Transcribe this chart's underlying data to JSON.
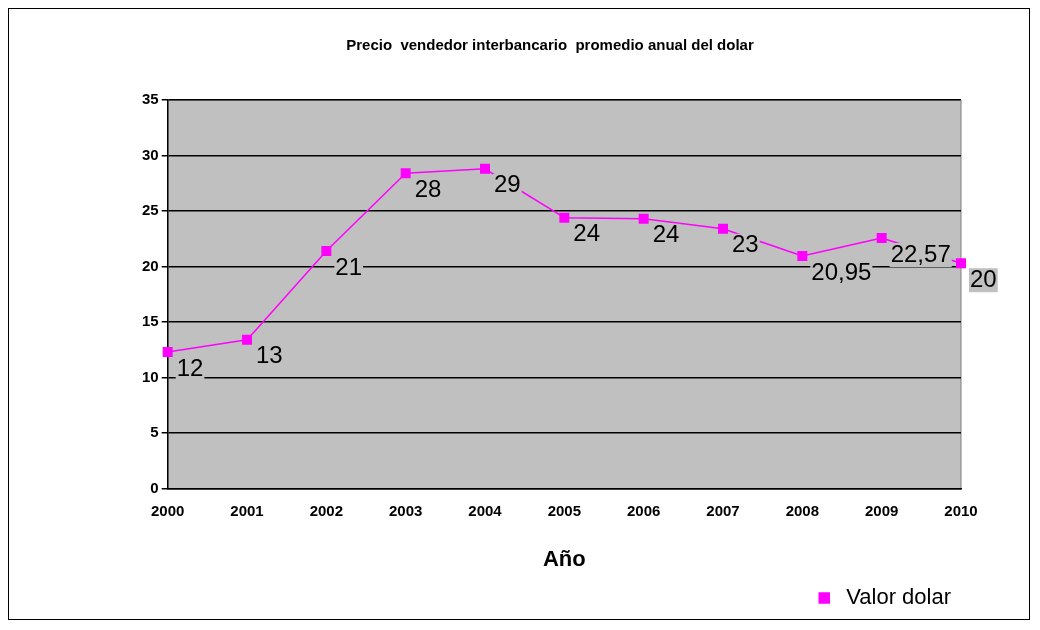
{
  "chart_data": {
    "type": "line",
    "title": "Precio  vendedor interbancario  promedio anual del dolar",
    "xlabel": "Año",
    "categories": [
      "2000",
      "2001",
      "2002",
      "2003",
      "2004",
      "2005",
      "2006",
      "2007",
      "2008",
      "2009",
      "2010"
    ],
    "series": [
      {
        "name": "Valor dolar",
        "color": "#ff00ff",
        "values": [
          12.3,
          13.4,
          21.4,
          28.4,
          28.8,
          24.4,
          24.3,
          23.4,
          20.95,
          22.57,
          20.3
        ],
        "value_labels": [
          "12",
          "13",
          "21",
          "28",
          "29",
          "24",
          "24",
          "23",
          "20,95",
          "22,57",
          "20"
        ]
      }
    ],
    "ylim": [
      0,
      35
    ],
    "yticks": [
      0,
      5,
      10,
      15,
      20,
      25,
      30,
      35
    ],
    "grid": "y",
    "legend": "bottom right",
    "marker": "square",
    "line_style": "solid"
  }
}
